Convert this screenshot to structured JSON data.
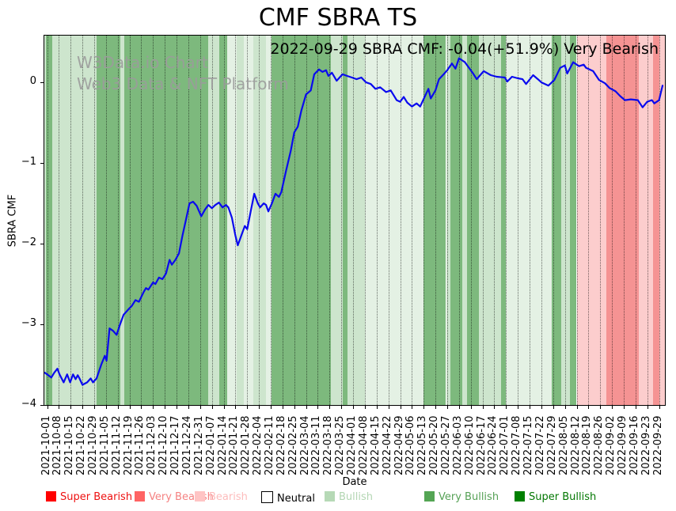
{
  "chart_data": {
    "type": "line",
    "title": "CMF SBRA TS",
    "xlabel": "Date",
    "ylabel": "SBRA CMF",
    "annotation": "2022-09-29 SBRA CMF: -0.04(+51.9%) Very Bearish",
    "watermark_line1": "W3Data.io Chart",
    "watermark_line2": "Web3 Data & NFT Platform",
    "grid": "vertical-dotted",
    "legend_position": "bottom",
    "ylim": [
      -4.0,
      0.58
    ],
    "xlim_weeks": [
      -0.24,
      52.5
    ],
    "y_ticks": [
      0,
      -1,
      -2,
      -3,
      -4
    ],
    "y_tick_labels": [
      "0",
      "−1",
      "−2",
      "−3",
      "−4"
    ],
    "x_tick_labels": [
      "2021-10-01",
      "2021-10-08",
      "2021-10-15",
      "2021-10-22",
      "2021-10-29",
      "2021-11-05",
      "2021-11-12",
      "2021-11-19",
      "2021-11-26",
      "2021-12-03",
      "2021-12-10",
      "2021-12-17",
      "2021-12-24",
      "2021-12-31",
      "2022-01-07",
      "2022-01-14",
      "2022-01-21",
      "2022-01-28",
      "2022-02-04",
      "2022-02-11",
      "2022-02-18",
      "2022-02-25",
      "2022-03-04",
      "2022-03-11",
      "2022-03-18",
      "2022-03-25",
      "2022-04-01",
      "2022-04-08",
      "2022-04-15",
      "2022-04-22",
      "2022-04-29",
      "2022-05-06",
      "2022-05-13",
      "2022-05-20",
      "2022-05-27",
      "2022-06-03",
      "2022-06-10",
      "2022-06-17",
      "2022-06-24",
      "2022-07-01",
      "2022-07-08",
      "2022-07-15",
      "2022-07-22",
      "2022-07-29",
      "2022-08-05",
      "2022-08-12",
      "2022-08-19",
      "2022-08-26",
      "2022-09-02",
      "2022-09-09",
      "2022-09-16",
      "2022-09-23",
      "2022-09-29"
    ],
    "line": {
      "name": "SBRA CMF",
      "color": "#0a0aee",
      "points": [
        [
          -0.2,
          -3.6
        ],
        [
          0,
          -3.62
        ],
        [
          0.35,
          -3.66
        ],
        [
          0.6,
          -3.6
        ],
        [
          0.87,
          -3.55
        ],
        [
          1.05,
          -3.62
        ],
        [
          1.4,
          -3.72
        ],
        [
          1.7,
          -3.62
        ],
        [
          1.95,
          -3.72
        ],
        [
          2.2,
          -3.62
        ],
        [
          2.42,
          -3.68
        ],
        [
          2.6,
          -3.63
        ],
        [
          2.75,
          -3.67
        ],
        [
          3.0,
          -3.75
        ],
        [
          3.4,
          -3.72
        ],
        [
          3.7,
          -3.67
        ],
        [
          3.9,
          -3.72
        ],
        [
          4.2,
          -3.67
        ],
        [
          4.6,
          -3.5
        ],
        [
          4.9,
          -3.39
        ],
        [
          5.05,
          -3.45
        ],
        [
          5.3,
          -3.05
        ],
        [
          5.6,
          -3.08
        ],
        [
          5.9,
          -3.13
        ],
        [
          6.2,
          -3.0
        ],
        [
          6.5,
          -2.88
        ],
        [
          7.0,
          -2.8
        ],
        [
          7.2,
          -2.77
        ],
        [
          7.5,
          -2.7
        ],
        [
          7.8,
          -2.72
        ],
        [
          8.2,
          -2.6
        ],
        [
          8.4,
          -2.55
        ],
        [
          8.6,
          -2.57
        ],
        [
          9.0,
          -2.48
        ],
        [
          9.2,
          -2.5
        ],
        [
          9.5,
          -2.42
        ],
        [
          9.8,
          -2.44
        ],
        [
          10.1,
          -2.37
        ],
        [
          10.4,
          -2.2
        ],
        [
          10.6,
          -2.26
        ],
        [
          10.9,
          -2.2
        ],
        [
          11.2,
          -2.12
        ],
        [
          11.5,
          -1.9
        ],
        [
          11.8,
          -1.7
        ],
        [
          12.1,
          -1.5
        ],
        [
          12.4,
          -1.48
        ],
        [
          12.7,
          -1.53
        ],
        [
          13.1,
          -1.66
        ],
        [
          13.4,
          -1.58
        ],
        [
          13.7,
          -1.52
        ],
        [
          14.0,
          -1.56
        ],
        [
          14.3,
          -1.52
        ],
        [
          14.6,
          -1.49
        ],
        [
          14.9,
          -1.55
        ],
        [
          15.2,
          -1.52
        ],
        [
          15.4,
          -1.55
        ],
        [
          15.7,
          -1.68
        ],
        [
          16.0,
          -1.9
        ],
        [
          16.2,
          -2.02
        ],
        [
          16.5,
          -1.9
        ],
        [
          16.8,
          -1.78
        ],
        [
          17.0,
          -1.82
        ],
        [
          17.3,
          -1.6
        ],
        [
          17.6,
          -1.38
        ],
        [
          17.9,
          -1.5
        ],
        [
          18.1,
          -1.55
        ],
        [
          18.4,
          -1.5
        ],
        [
          18.6,
          -1.52
        ],
        [
          18.8,
          -1.6
        ],
        [
          19.1,
          -1.5
        ],
        [
          19.4,
          -1.38
        ],
        [
          19.7,
          -1.42
        ],
        [
          19.9,
          -1.36
        ],
        [
          20.3,
          -1.1
        ],
        [
          20.7,
          -0.85
        ],
        [
          21.0,
          -0.62
        ],
        [
          21.3,
          -0.55
        ],
        [
          21.6,
          -0.35
        ],
        [
          22.0,
          -0.15
        ],
        [
          22.4,
          -0.1
        ],
        [
          22.7,
          0.1
        ],
        [
          23.1,
          0.16
        ],
        [
          23.4,
          0.13
        ],
        [
          23.7,
          0.15
        ],
        [
          23.9,
          0.08
        ],
        [
          24.2,
          0.12
        ],
        [
          24.6,
          0.02
        ],
        [
          25.1,
          0.1
        ],
        [
          25.5,
          0.08
        ],
        [
          25.9,
          0.06
        ],
        [
          26.3,
          0.04
        ],
        [
          26.7,
          0.06
        ],
        [
          27.1,
          0.0
        ],
        [
          27.5,
          -0.02
        ],
        [
          27.9,
          -0.08
        ],
        [
          28.3,
          -0.06
        ],
        [
          28.8,
          -0.12
        ],
        [
          29.2,
          -0.1
        ],
        [
          29.7,
          -0.22
        ],
        [
          30.0,
          -0.24
        ],
        [
          30.3,
          -0.18
        ],
        [
          30.6,
          -0.25
        ],
        [
          31.0,
          -0.3
        ],
        [
          31.4,
          -0.26
        ],
        [
          31.7,
          -0.3
        ],
        [
          32.4,
          -0.08
        ],
        [
          32.6,
          -0.2
        ],
        [
          33.0,
          -0.1
        ],
        [
          33.3,
          0.04
        ],
        [
          33.7,
          0.1
        ],
        [
          34.0,
          0.15
        ],
        [
          34.4,
          0.235
        ],
        [
          34.7,
          0.17
        ],
        [
          35.0,
          0.3
        ],
        [
          35.3,
          0.27
        ],
        [
          35.5,
          0.25
        ],
        [
          36.2,
          0.11
        ],
        [
          36.5,
          0.04
        ],
        [
          37.1,
          0.14
        ],
        [
          37.7,
          0.09
        ],
        [
          38.2,
          0.07
        ],
        [
          38.9,
          0.06
        ],
        [
          39.1,
          0.01
        ],
        [
          39.5,
          0.07
        ],
        [
          40.0,
          0.05
        ],
        [
          40.4,
          0.04
        ],
        [
          40.7,
          -0.02
        ],
        [
          41.3,
          0.09
        ],
        [
          41.7,
          0.04
        ],
        [
          42.0,
          0.0
        ],
        [
          42.6,
          -0.04
        ],
        [
          43.1,
          0.03
        ],
        [
          43.6,
          0.18
        ],
        [
          44.0,
          0.21
        ],
        [
          44.2,
          0.11
        ],
        [
          44.7,
          0.25
        ],
        [
          45.2,
          0.2
        ],
        [
          45.6,
          0.22
        ],
        [
          45.8,
          0.18
        ],
        [
          46.4,
          0.14
        ],
        [
          46.9,
          0.03
        ],
        [
          47.4,
          -0.01
        ],
        [
          47.8,
          -0.07
        ],
        [
          48.3,
          -0.11
        ],
        [
          48.7,
          -0.17
        ],
        [
          49.1,
          -0.22
        ],
        [
          49.6,
          -0.21
        ],
        [
          50.2,
          -0.22
        ],
        [
          50.6,
          -0.31
        ],
        [
          51.0,
          -0.24
        ],
        [
          51.4,
          -0.22
        ],
        [
          51.6,
          -0.26
        ],
        [
          52.0,
          -0.22
        ],
        [
          52.3,
          -0.04
        ]
      ]
    },
    "band_colors": {
      "super_bearish": "#ff0000",
      "very_bearish": "#f59393",
      "bearish": "#fccdcd",
      "neutral": "#ffffff",
      "bullish": "#cde5cd",
      "bullish_light": "#e4f1e4",
      "very_bullish": "#7db97d",
      "super_bullish": "#008000"
    },
    "sentiment_bands": [
      {
        "from": -0.24,
        "to": -0.1,
        "level": "bullish"
      },
      {
        "from": -0.1,
        "to": 0.45,
        "level": "very_bullish"
      },
      {
        "from": 0.45,
        "to": 4.2,
        "level": "bullish"
      },
      {
        "from": 4.2,
        "to": 6.2,
        "level": "very_bullish"
      },
      {
        "from": 6.2,
        "to": 6.55,
        "level": "bullish"
      },
      {
        "from": 6.55,
        "to": 13.7,
        "level": "very_bullish"
      },
      {
        "from": 13.7,
        "to": 14.6,
        "level": "bullish"
      },
      {
        "from": 14.6,
        "to": 15.3,
        "level": "very_bullish"
      },
      {
        "from": 15.3,
        "to": 16.1,
        "level": "bullish_light"
      },
      {
        "from": 16.1,
        "to": 16.7,
        "level": "bullish"
      },
      {
        "from": 16.7,
        "to": 17.5,
        "level": "bullish_light"
      },
      {
        "from": 17.5,
        "to": 18.6,
        "level": "bullish"
      },
      {
        "from": 18.6,
        "to": 19.1,
        "level": "bullish_light"
      },
      {
        "from": 19.1,
        "to": 24.1,
        "level": "very_bullish"
      },
      {
        "from": 24.1,
        "to": 25.1,
        "level": "bullish"
      },
      {
        "from": 25.1,
        "to": 25.5,
        "level": "very_bullish"
      },
      {
        "from": 25.5,
        "to": 27.0,
        "level": "bullish"
      },
      {
        "from": 27.0,
        "to": 32.0,
        "level": "bullish_light"
      },
      {
        "from": 32.0,
        "to": 33.9,
        "level": "very_bullish"
      },
      {
        "from": 33.9,
        "to": 34.3,
        "level": "bullish"
      },
      {
        "from": 34.3,
        "to": 35.3,
        "level": "very_bullish"
      },
      {
        "from": 35.3,
        "to": 35.7,
        "level": "bullish"
      },
      {
        "from": 35.7,
        "to": 36.7,
        "level": "very_bullish"
      },
      {
        "from": 36.7,
        "to": 38.6,
        "level": "bullish"
      },
      {
        "from": 38.6,
        "to": 39.0,
        "level": "very_bullish"
      },
      {
        "from": 39.0,
        "to": 42.9,
        "level": "bullish_light"
      },
      {
        "from": 42.9,
        "to": 43.7,
        "level": "very_bullish"
      },
      {
        "from": 43.7,
        "to": 44.4,
        "level": "bullish"
      },
      {
        "from": 44.4,
        "to": 45.0,
        "level": "very_bullish"
      },
      {
        "from": 45.0,
        "to": 47.5,
        "level": "bearish"
      },
      {
        "from": 47.5,
        "to": 50.3,
        "level": "very_bearish"
      },
      {
        "from": 50.3,
        "to": 51.5,
        "level": "bearish"
      },
      {
        "from": 51.5,
        "to": 52.0,
        "level": "very_bearish"
      },
      {
        "from": 52.0,
        "to": 52.5,
        "level": "bearish"
      }
    ],
    "legend": {
      "entries": [
        {
          "label": "Super Bearish",
          "swatch": "#ff0000",
          "text_color": "#ee1111",
          "swatch_border": ""
        },
        {
          "label": "Very Bearish",
          "swatch": "#ff6363",
          "text_color": "#f58282",
          "swatch_border": ""
        },
        {
          "label": "Bearish",
          "swatch": "#ffc4c4",
          "text_color": "#fdbcbc",
          "swatch_border": ""
        },
        {
          "label": "Neutral",
          "swatch": "#ffffff",
          "text_color": "#000000",
          "swatch_border": "#000000"
        },
        {
          "label": "Bullish",
          "swatch": "#b6d9b6",
          "text_color": "#b3d6b3",
          "swatch_border": ""
        },
        {
          "label": "Very Bullish",
          "swatch": "#54a554",
          "text_color": "#56a156",
          "swatch_border": ""
        },
        {
          "label": "Super Bullish",
          "swatch": "#008000",
          "text_color": "#047804",
          "swatch_border": ""
        }
      ]
    }
  }
}
